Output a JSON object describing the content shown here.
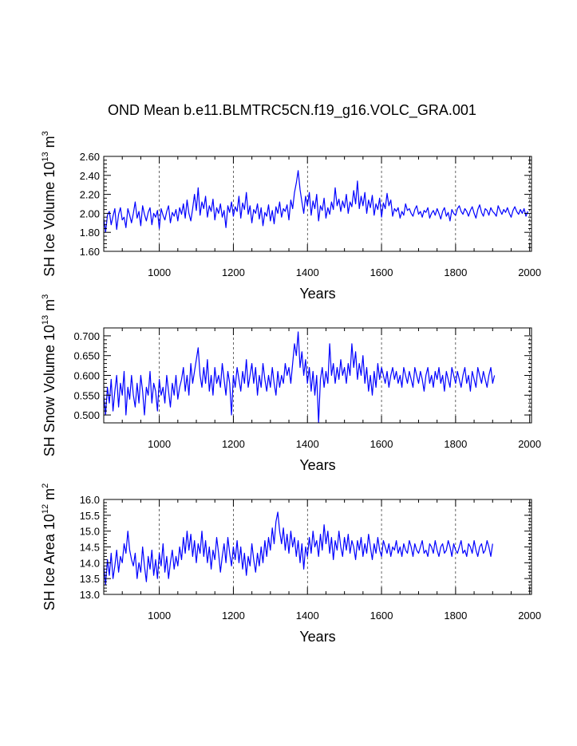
{
  "page": {
    "title": "OND Mean b.e11.BLMTRC5CN.f19_g16.VOLC_GRA.001"
  },
  "colors": {
    "series": "#0000ff",
    "axes": "#000000",
    "grid": "#000000",
    "background": "#ffffff"
  },
  "chart_data": [
    {
      "type": "line",
      "title": "",
      "xlabel": "Years",
      "ylabel_main": "SH Ice Volume 10",
      "ylabel_exp": "13",
      "ylabel_unit": " m",
      "ylabel_unit_exp": "3",
      "xlim": [
        850,
        2005
      ],
      "ylim": [
        1.6,
        2.6
      ],
      "xticks": [
        1000,
        1200,
        1400,
        1600,
        1800,
        2000
      ],
      "xtick_labels": [
        "1000",
        "1200",
        "1400",
        "1600",
        "1800",
        "2000"
      ],
      "yticks": [
        1.6,
        1.8,
        2.0,
        2.2,
        2.4,
        2.6
      ],
      "ytick_labels": [
        "1.60",
        "1.80",
        "2.00",
        "2.20",
        "2.40",
        "2.60"
      ],
      "grid": "vertical dashed at major x ticks",
      "series": [
        {
          "name": "SH Ice Volume",
          "x_start": 850,
          "x_step": 5,
          "values": [
            1.95,
            1.8,
            1.98,
            2.02,
            1.88,
            1.97,
            2.05,
            1.83,
            1.99,
            2.06,
            1.93,
            1.96,
            1.85,
            2.05,
            1.98,
            1.9,
            2.0,
            2.12,
            1.95,
            2.02,
            1.87,
            2.08,
            1.99,
            1.92,
            2.01,
            2.06,
            1.88,
            2.0,
            1.96,
            2.03,
            1.84,
            2.05,
            1.98,
            1.93,
            2.02,
            2.08,
            1.9,
            2.01,
            1.97,
            2.04,
            1.92,
            2.06,
            1.99,
            2.1,
            1.95,
            2.14,
            2.0,
            1.92,
            2.05,
            2.2,
            2.03,
            2.27,
            1.98,
            2.12,
            2.05,
            2.18,
            1.96,
            2.08,
            2.02,
            2.15,
            1.93,
            2.06,
            2.0,
            2.1,
            1.96,
            2.03,
            1.85,
            2.08,
            2.01,
            2.12,
            1.97,
            2.07,
            2.02,
            2.18,
            1.95,
            2.11,
            2.04,
            2.22,
            1.99,
            2.08,
            1.9,
            2.04,
            2.0,
            2.1,
            1.94,
            2.06,
            1.87,
            2.01,
            1.97,
            2.09,
            1.92,
            2.03,
            1.89,
            2.07,
            2.0,
            2.12,
            1.96,
            2.05,
            2.02,
            2.09,
            1.93,
            2.14,
            2.05,
            2.22,
            2.32,
            2.45,
            2.25,
            2.12,
            2.0,
            2.18,
            2.08,
            2.22,
            1.98,
            2.13,
            2.05,
            2.2,
            1.92,
            2.08,
            2.03,
            2.16,
            1.95,
            2.06,
            1.99,
            2.12,
            2.04,
            2.27,
            2.08,
            2.15,
            2.02,
            2.13,
            2.06,
            2.2,
            2.0,
            2.12,
            2.07,
            2.24,
            2.1,
            2.34,
            2.05,
            2.18,
            2.08,
            2.22,
            2.0,
            2.14,
            2.06,
            2.19,
            1.98,
            2.1,
            2.04,
            2.16,
            1.96,
            2.11,
            2.05,
            2.21,
            2.08,
            2.14,
            1.97,
            2.05,
            2.02,
            2.06,
            1.95,
            2.02,
            1.98,
            2.1,
            2.03,
            2.05,
            2.0,
            1.97,
            2.04,
            2.08,
            1.99,
            2.02,
            1.96,
            2.03,
            2.01,
            2.06,
            1.95,
            2.0,
            2.03,
            1.98,
            2.05,
            2.0,
            1.94,
            2.02,
            2.06,
            1.97,
            2.01,
            1.92,
            2.04,
            2.0,
            1.98,
            2.05,
            2.08,
            2.02,
            1.99,
            2.05,
            2.02,
            1.97,
            2.03,
            2.07,
            2.0,
            1.95,
            2.04,
            2.09,
            2.01,
            1.97,
            2.05,
            2.03,
            1.98,
            2.06,
            2.02,
            2.0,
            1.97,
            2.08,
            2.03,
            1.99,
            2.04,
            2.01,
            2.06,
            2.0,
            1.96,
            2.03,
            2.07,
            2.02,
            1.99,
            2.04,
            2.0,
            2.05,
            1.97,
            2.02
          ]
        }
      ]
    },
    {
      "type": "line",
      "title": "",
      "xlabel": "Years",
      "ylabel_main": "SH Snow Volume 10",
      "ylabel_exp": "13",
      "ylabel_unit": " m",
      "ylabel_unit_exp": "3",
      "xlim": [
        850,
        2005
      ],
      "ylim": [
        0.48,
        0.72
      ],
      "xticks": [
        1000,
        1200,
        1400,
        1600,
        1800,
        2000
      ],
      "xtick_labels": [
        "1000",
        "1200",
        "1400",
        "1600",
        "1800",
        "2000"
      ],
      "yticks": [
        0.5,
        0.55,
        0.6,
        0.65,
        0.7
      ],
      "ytick_labels": [
        "0.500",
        "0.550",
        "0.600",
        "0.650",
        "0.700"
      ],
      "grid": "vertical dashed at major x ticks",
      "series": [
        {
          "name": "SH Snow Volume",
          "x_start": 850,
          "x_step": 5,
          "values": [
            0.55,
            0.5,
            0.57,
            0.53,
            0.59,
            0.51,
            0.56,
            0.6,
            0.52,
            0.58,
            0.55,
            0.61,
            0.5,
            0.57,
            0.54,
            0.6,
            0.55,
            0.52,
            0.58,
            0.53,
            0.6,
            0.56,
            0.5,
            0.57,
            0.55,
            0.61,
            0.53,
            0.58,
            0.56,
            0.51,
            0.59,
            0.55,
            0.57,
            0.53,
            0.6,
            0.56,
            0.52,
            0.58,
            0.55,
            0.6,
            0.54,
            0.57,
            0.59,
            0.62,
            0.56,
            0.6,
            0.55,
            0.63,
            0.58,
            0.61,
            0.64,
            0.67,
            0.6,
            0.57,
            0.62,
            0.58,
            0.64,
            0.56,
            0.6,
            0.55,
            0.62,
            0.58,
            0.6,
            0.57,
            0.63,
            0.59,
            0.55,
            0.61,
            0.58,
            0.5,
            0.6,
            0.57,
            0.62,
            0.59,
            0.56,
            0.61,
            0.58,
            0.64,
            0.57,
            0.6,
            0.63,
            0.58,
            0.62,
            0.55,
            0.6,
            0.57,
            0.63,
            0.59,
            0.56,
            0.6,
            0.57,
            0.62,
            0.58,
            0.55,
            0.61,
            0.57,
            0.6,
            0.58,
            0.63,
            0.6,
            0.62,
            0.58,
            0.63,
            0.68,
            0.65,
            0.71,
            0.62,
            0.66,
            0.6,
            0.64,
            0.58,
            0.62,
            0.56,
            0.61,
            0.55,
            0.6,
            0.48,
            0.59,
            0.62,
            0.57,
            0.61,
            0.58,
            0.68,
            0.6,
            0.63,
            0.58,
            0.62,
            0.59,
            0.64,
            0.6,
            0.62,
            0.58,
            0.63,
            0.6,
            0.68,
            0.62,
            0.66,
            0.59,
            0.63,
            0.6,
            0.65,
            0.58,
            0.62,
            0.56,
            0.6,
            0.55,
            0.61,
            0.57,
            0.63,
            0.59,
            0.62,
            0.6,
            0.58,
            0.61,
            0.57,
            0.6,
            0.62,
            0.59,
            0.61,
            0.58,
            0.6,
            0.57,
            0.62,
            0.6,
            0.58,
            0.61,
            0.59,
            0.57,
            0.62,
            0.6,
            0.58,
            0.61,
            0.59,
            0.56,
            0.6,
            0.62,
            0.58,
            0.6,
            0.57,
            0.61,
            0.59,
            0.62,
            0.58,
            0.6,
            0.56,
            0.61,
            0.59,
            0.57,
            0.62,
            0.6,
            0.58,
            0.61,
            0.59,
            0.57,
            0.6,
            0.62,
            0.58,
            0.6,
            0.56,
            0.61,
            0.59,
            0.57,
            0.62,
            0.6,
            0.58,
            0.61,
            0.59,
            0.57,
            0.6,
            0.62,
            0.58,
            0.6
          ]
        }
      ]
    },
    {
      "type": "line",
      "title": "",
      "xlabel": "Years",
      "ylabel_main": "SH Ice Area 10",
      "ylabel_exp": "12",
      "ylabel_unit": " m",
      "ylabel_unit_exp": "2",
      "xlim": [
        850,
        2005
      ],
      "ylim": [
        13.0,
        16.0
      ],
      "xticks": [
        1000,
        1200,
        1400,
        1600,
        1800,
        2000
      ],
      "xtick_labels": [
        "1000",
        "1200",
        "1400",
        "1600",
        "1800",
        "2000"
      ],
      "yticks": [
        13.0,
        13.5,
        14.0,
        14.5,
        15.0,
        15.5,
        16.0
      ],
      "ytick_labels": [
        "13.0",
        "13.5",
        "14.0",
        "14.5",
        "15.0",
        "15.5",
        "16.0"
      ],
      "grid": "vertical dashed at major x ticks",
      "series": [
        {
          "name": "SH Ice Area",
          "x_start": 850,
          "x_step": 5,
          "values": [
            13.9,
            13.3,
            14.1,
            13.6,
            14.3,
            13.5,
            13.9,
            14.4,
            13.7,
            14.2,
            14.0,
            14.6,
            14.3,
            15.0,
            14.4,
            14.1,
            13.9,
            14.3,
            13.5,
            14.0,
            13.7,
            14.5,
            13.9,
            13.4,
            14.2,
            13.8,
            14.4,
            13.6,
            14.1,
            13.5,
            14.3,
            13.9,
            14.6,
            13.7,
            14.2,
            13.5,
            14.0,
            14.4,
            13.8,
            14.2,
            13.9,
            14.5,
            14.1,
            14.8,
            14.3,
            15.0,
            14.4,
            14.9,
            14.2,
            14.7,
            14.0,
            14.6,
            14.3,
            15.0,
            14.2,
            14.7,
            14.0,
            14.5,
            13.8,
            14.4,
            14.1,
            14.8,
            14.3,
            13.7,
            14.2,
            14.6,
            14.0,
            14.8,
            14.3,
            13.9,
            14.5,
            14.1,
            14.7,
            14.0,
            14.5,
            13.8,
            14.3,
            13.6,
            14.2,
            13.9,
            14.6,
            14.1,
            13.7,
            14.3,
            13.9,
            14.5,
            14.0,
            14.7,
            14.2,
            14.8,
            14.4,
            15.1,
            14.6,
            15.3,
            15.6,
            15.0,
            14.6,
            15.1,
            14.4,
            14.9,
            14.3,
            15.0,
            14.5,
            14.8,
            14.2,
            14.7,
            14.0,
            14.6,
            13.8,
            14.5,
            14.2,
            14.8,
            14.3,
            15.0,
            14.5,
            14.7,
            14.2,
            14.9,
            14.4,
            15.2,
            14.6,
            15.0,
            14.3,
            14.8,
            14.1,
            14.7,
            14.4,
            15.0,
            14.5,
            14.2,
            14.8,
            14.4,
            14.9,
            14.3,
            14.7,
            14.5,
            14.1,
            14.7,
            14.4,
            14.8,
            14.2,
            14.6,
            14.3,
            14.9,
            14.5,
            14.1,
            14.6,
            14.3,
            14.8,
            14.4,
            14.2,
            14.7,
            14.5,
            14.3,
            14.6,
            14.2,
            14.5,
            14.4,
            14.7,
            14.3,
            14.5,
            14.2,
            14.6,
            14.4,
            14.3,
            14.7,
            14.5,
            14.2,
            14.6,
            14.4,
            14.3,
            14.5,
            14.7,
            14.3,
            14.4,
            14.2,
            14.6,
            14.5,
            14.3,
            14.7,
            14.4,
            14.2,
            14.5,
            14.6,
            14.3,
            14.4,
            14.7,
            14.5,
            14.2,
            14.6,
            14.4,
            14.3,
            14.5,
            14.7,
            14.3,
            14.4,
            14.2,
            14.6,
            14.5,
            14.3,
            14.7,
            14.4,
            14.2,
            14.5,
            14.6,
            14.3,
            14.4,
            14.7,
            14.5,
            14.2,
            14.6
          ]
        }
      ]
    }
  ]
}
